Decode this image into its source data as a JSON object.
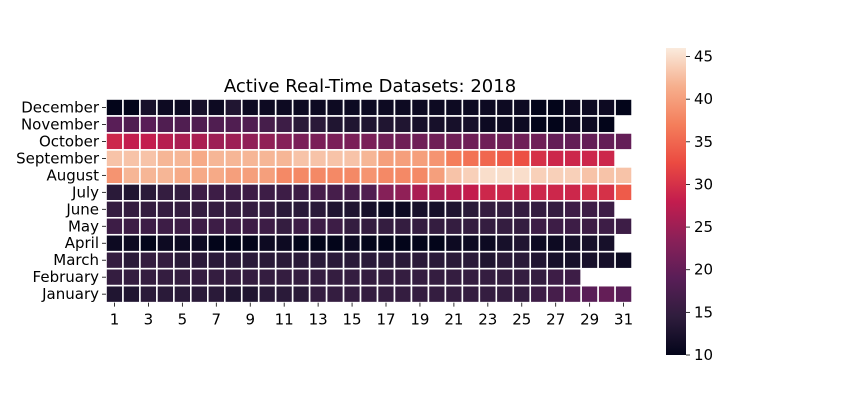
{
  "chart_data": {
    "type": "heatmap",
    "title": "Active Real-Time Datasets: 2018",
    "rows": [
      "December",
      "November",
      "October",
      "September",
      "August",
      "July",
      "June",
      "May",
      "April",
      "March",
      "February",
      "January"
    ],
    "columns": [
      1,
      2,
      3,
      4,
      5,
      6,
      7,
      8,
      9,
      10,
      11,
      12,
      13,
      14,
      15,
      16,
      17,
      18,
      19,
      20,
      21,
      22,
      23,
      24,
      25,
      26,
      27,
      28,
      29,
      30,
      31
    ],
    "x_tick_labels": [
      "1",
      "3",
      "5",
      "7",
      "9",
      "11",
      "13",
      "15",
      "17",
      "19",
      "21",
      "23",
      "25",
      "27",
      "29",
      "31"
    ],
    "colorbar": {
      "min": 10,
      "max": 46,
      "ticks": [
        10,
        15,
        20,
        25,
        30,
        35,
        40,
        45
      ],
      "colormap": "rocket"
    },
    "values": [
      [
        10,
        10,
        12,
        11,
        11,
        12,
        11,
        13,
        11,
        11,
        11,
        11,
        11,
        11,
        11,
        11,
        11,
        11,
        11,
        11,
        11,
        11,
        11,
        11,
        11,
        10,
        10,
        11,
        11,
        11,
        10
      ],
      [
        19,
        18,
        19,
        18,
        18,
        18,
        18,
        18,
        18,
        17,
        16,
        14,
        14,
        13,
        13,
        13,
        13,
        13,
        12,
        12,
        12,
        12,
        11,
        11,
        11,
        10,
        10,
        11,
        11,
        10,
        null
      ],
      [
        29,
        28,
        28,
        27,
        26,
        26,
        25,
        25,
        24,
        24,
        23,
        22,
        22,
        22,
        22,
        22,
        21,
        21,
        21,
        21,
        21,
        21,
        21,
        21,
        21,
        21,
        20,
        20,
        20,
        20,
        20
      ],
      [
        43,
        43,
        43,
        42,
        42,
        41,
        42,
        42,
        42,
        42,
        42,
        43,
        43,
        43,
        43,
        42,
        40,
        40,
        40,
        39,
        37,
        36,
        35,
        34,
        33,
        30,
        29,
        29,
        29,
        29,
        null
      ],
      [
        39,
        42,
        42,
        42,
        41,
        41,
        41,
        40,
        40,
        40,
        38,
        38,
        38,
        38,
        38,
        39,
        38,
        38,
        38,
        40,
        43,
        44,
        45,
        45,
        45,
        44,
        44,
        44,
        43,
        43,
        43
      ],
      [
        14,
        13,
        14,
        15,
        15,
        16,
        16,
        16,
        16,
        16,
        16,
        16,
        17,
        17,
        17,
        18,
        23,
        24,
        26,
        26,
        27,
        28,
        29,
        29,
        29,
        29,
        29,
        29,
        30,
        30,
        34
      ],
      [
        15,
        15,
        15,
        15,
        15,
        15,
        15,
        15,
        15,
        15,
        14,
        14,
        14,
        13,
        13,
        12,
        11,
        11,
        12,
        12,
        13,
        14,
        15,
        15,
        15,
        15,
        15,
        16,
        16,
        16,
        null
      ],
      [
        16,
        16,
        16,
        16,
        16,
        16,
        16,
        16,
        16,
        16,
        15,
        16,
        16,
        16,
        15,
        15,
        15,
        15,
        15,
        15,
        15,
        15,
        15,
        15,
        15,
        16,
        16,
        16,
        16,
        16,
        16
      ],
      [
        11,
        11,
        10,
        11,
        11,
        11,
        10,
        10,
        10,
        11,
        11,
        10,
        10,
        10,
        11,
        10,
        10,
        10,
        10,
        10,
        11,
        11,
        11,
        12,
        13,
        11,
        11,
        12,
        12,
        12,
        null
      ],
      [
        15,
        14,
        15,
        15,
        14,
        14,
        14,
        14,
        14,
        14,
        14,
        14,
        14,
        14,
        14,
        14,
        14,
        14,
        14,
        14,
        14,
        14,
        13,
        14,
        14,
        13,
        12,
        12,
        12,
        12,
        11
      ],
      [
        15,
        15,
        15,
        15,
        15,
        15,
        15,
        15,
        15,
        15,
        15,
        15,
        15,
        15,
        15,
        15,
        15,
        15,
        15,
        15,
        15,
        15,
        15,
        15,
        15,
        15,
        16,
        16,
        null,
        null,
        null
      ],
      [
        13,
        13,
        14,
        14,
        14,
        14,
        14,
        13,
        13,
        14,
        14,
        14,
        15,
        15,
        15,
        15,
        15,
        15,
        15,
        15,
        15,
        15,
        15,
        15,
        15,
        16,
        17,
        18,
        19,
        20,
        19
      ]
    ]
  }
}
